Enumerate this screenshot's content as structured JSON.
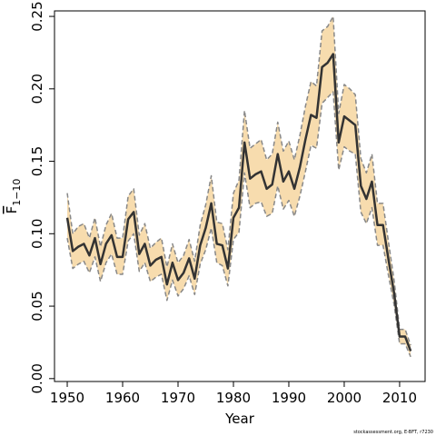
{
  "chart_data": {
    "type": "line",
    "x_label": "Year",
    "y_label": {
      "symbol": "F",
      "subscript": "1−10"
    },
    "footnote": "stockassessment.org, E-BFT, r7230",
    "x": [
      1950,
      1951,
      1952,
      1953,
      1954,
      1955,
      1956,
      1957,
      1958,
      1959,
      1960,
      1961,
      1962,
      1963,
      1964,
      1965,
      1966,
      1967,
      1968,
      1969,
      1970,
      1971,
      1972,
      1973,
      1974,
      1975,
      1976,
      1977,
      1978,
      1979,
      1980,
      1981,
      1982,
      1983,
      1984,
      1985,
      1986,
      1987,
      1988,
      1989,
      1990,
      1991,
      1992,
      1993,
      1994,
      1995,
      1996,
      1997,
      1998,
      1999,
      2000,
      2001,
      2002,
      2003,
      2004,
      2005,
      2006,
      2007,
      2008,
      2009,
      2010,
      2011,
      2012
    ],
    "values": [
      0.111,
      0.088,
      0.091,
      0.093,
      0.085,
      0.097,
      0.079,
      0.093,
      0.099,
      0.084,
      0.084,
      0.11,
      0.115,
      0.086,
      0.093,
      0.078,
      0.082,
      0.084,
      0.065,
      0.08,
      0.068,
      0.073,
      0.083,
      0.069,
      0.092,
      0.104,
      0.121,
      0.093,
      0.092,
      0.076,
      0.111,
      0.118,
      0.163,
      0.138,
      0.141,
      0.143,
      0.131,
      0.134,
      0.155,
      0.136,
      0.143,
      0.131,
      0.146,
      0.165,
      0.182,
      0.18,
      0.215,
      0.218,
      0.224,
      0.163,
      0.181,
      0.178,
      0.175,
      0.133,
      0.124,
      0.136,
      0.106,
      0.106,
      0.082,
      0.059,
      0.029,
      0.029,
      0.019
    ],
    "lower": [
      0.097,
      0.076,
      0.079,
      0.081,
      0.073,
      0.084,
      0.067,
      0.08,
      0.086,
      0.072,
      0.072,
      0.095,
      0.1,
      0.074,
      0.08,
      0.067,
      0.07,
      0.072,
      0.054,
      0.068,
      0.057,
      0.062,
      0.071,
      0.058,
      0.079,
      0.089,
      0.104,
      0.08,
      0.078,
      0.064,
      0.096,
      0.101,
      0.142,
      0.118,
      0.121,
      0.122,
      0.112,
      0.114,
      0.133,
      0.117,
      0.123,
      0.112,
      0.126,
      0.143,
      0.161,
      0.159,
      0.19,
      0.194,
      0.198,
      0.144,
      0.16,
      0.157,
      0.155,
      0.115,
      0.107,
      0.118,
      0.092,
      0.092,
      0.071,
      0.051,
      0.024,
      0.024,
      0.015
    ],
    "upper": [
      0.128,
      0.1,
      0.105,
      0.107,
      0.097,
      0.111,
      0.091,
      0.106,
      0.114,
      0.097,
      0.097,
      0.126,
      0.131,
      0.099,
      0.107,
      0.09,
      0.094,
      0.097,
      0.077,
      0.093,
      0.08,
      0.085,
      0.096,
      0.081,
      0.106,
      0.12,
      0.14,
      0.108,
      0.107,
      0.089,
      0.128,
      0.137,
      0.185,
      0.159,
      0.162,
      0.165,
      0.151,
      0.155,
      0.177,
      0.157,
      0.164,
      0.151,
      0.168,
      0.188,
      0.205,
      0.202,
      0.24,
      0.243,
      0.25,
      0.183,
      0.203,
      0.2,
      0.196,
      0.152,
      0.142,
      0.155,
      0.121,
      0.121,
      0.094,
      0.068,
      0.034,
      0.034,
      0.023
    ],
    "line_color": "#333333",
    "band_color": "#f7dcae",
    "band_edge_color": "#888888",
    "xlim": [
      1947.7,
      2014.6
    ],
    "ylim": [
      -0.002,
      0.2538
    ],
    "xticks": [
      1950,
      1960,
      1970,
      1980,
      1990,
      2000,
      2010
    ],
    "yticks": [
      {
        "value": 0,
        "label": "0.00"
      },
      0.05,
      {
        "value": 0.1,
        "label": "0.10"
      },
      0.15,
      {
        "value": 0.2,
        "label": "0.20"
      },
      0.25
    ]
  }
}
